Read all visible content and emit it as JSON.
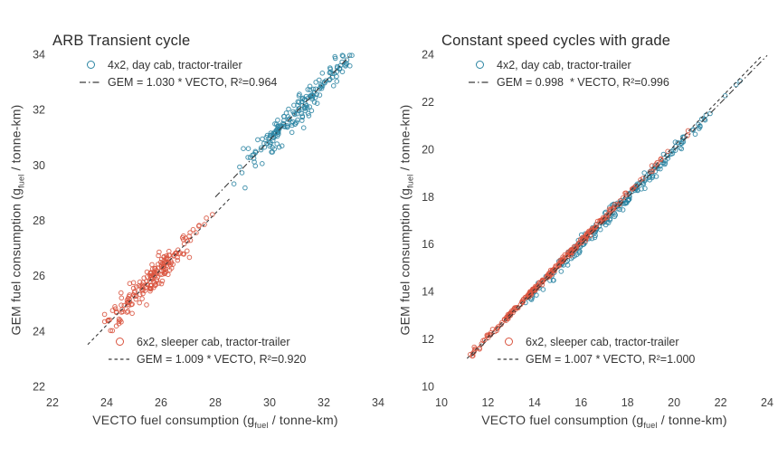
{
  "page": {
    "background": "#ffffff"
  },
  "chart_data": [
    {
      "type": "scatter",
      "title": "ARB Transient cycle",
      "xlabel": "VECTO fuel consumption (g_fuel / tonne-km)",
      "ylabel": "GEM fuel consumption (g_fuel / tonne-km)",
      "xlabel_parts": {
        "pre": "VECTO fuel consumption (g",
        "sub": "fuel",
        "post": " / tonne-km)"
      },
      "ylabel_parts": {
        "pre": "GEM fuel consumption (g",
        "sub": "fuel",
        "post": " / tonne-km)"
      },
      "xlim": [
        22,
        34
      ],
      "ylim": [
        22,
        34
      ],
      "xticks": [
        22,
        24,
        26,
        28,
        30,
        32,
        34
      ],
      "yticks": [
        22,
        24,
        26,
        28,
        30,
        32,
        34
      ],
      "grid": false,
      "legend_position": {
        "first_series": "upper-left-inside",
        "second_series": "lower-center-inside"
      },
      "series": [
        {
          "name": "4x2, day cab, tractor-trailer",
          "color": "#2a84a2",
          "marker": "open-circle",
          "fit_label": "GEM = 1.030 * VECTO, R²=0.964",
          "fit": {
            "slope": 1.03,
            "intercept": 0,
            "r2": 0.964,
            "dash": "dash-dot",
            "x_range": [
              28.0,
              33.0
            ]
          },
          "points_spec": {
            "count": 190,
            "x_min": 28.4,
            "x_max": 33.2,
            "x_mode": 30.9,
            "slope": 1.03,
            "noise_sd": 0.27,
            "seed": 7
          }
        },
        {
          "name": "6x2, sleeper cab, tractor-trailer",
          "color": "#d9533e",
          "marker": "open-circle",
          "fit_label": "GEM = 1.009 * VECTO, R²=0.920",
          "fit": {
            "slope": 1.009,
            "intercept": 0,
            "r2": 0.92,
            "dash": "dashed",
            "x_range": [
              23.3,
              28.55
            ]
          },
          "points_spec": {
            "count": 190,
            "x_min": 23.9,
            "x_max": 28.0,
            "x_mode": 25.7,
            "slope": 1.009,
            "noise_sd": 0.27,
            "seed": 13
          }
        }
      ]
    },
    {
      "type": "scatter",
      "title": "Constant speed cycles with grade",
      "xlabel": "VECTO fuel consumption (g_fuel / tonne-km)",
      "ylabel": "GEM fuel consumption (g_fuel / tonne-km)",
      "xlabel_parts": {
        "pre": "VECTO fuel consumption (g",
        "sub": "fuel",
        "post": " / tonne-km)"
      },
      "ylabel_parts": {
        "pre": "GEM fuel consumption (g",
        "sub": "fuel",
        "post": " / tonne-km)"
      },
      "xlim": [
        10,
        24
      ],
      "ylim": [
        10,
        24
      ],
      "xticks": [
        10,
        12,
        14,
        16,
        18,
        20,
        22,
        24
      ],
      "yticks": [
        10,
        12,
        14,
        16,
        18,
        20,
        22,
        24
      ],
      "grid": false,
      "legend_position": {
        "first_series": "upper-left-inside",
        "second_series": "lower-center-inside"
      },
      "series": [
        {
          "name": "4x2, day cab, tractor-trailer",
          "color": "#2a84a2",
          "marker": "open-circle",
          "fit_label": "GEM = 0.998  * VECTO, R²=0.996",
          "fit": {
            "slope": 0.998,
            "intercept": 0,
            "r2": 0.996,
            "dash": "dash-dot",
            "x_range": [
              11.3,
              24.0
            ]
          },
          "points_spec": {
            "count": 210,
            "x_min": 13.4,
            "x_max": 24.0,
            "x_mode": 17.3,
            "slope": 0.998,
            "noise_sd": 0.17,
            "seed": 21
          }
        },
        {
          "name": "6x2, sleeper cab, tractor-trailer",
          "color": "#d9533e",
          "marker": "open-circle",
          "fit_label": "GEM = 1.007 * VECTO, R²=1.000",
          "fit": {
            "slope": 1.007,
            "intercept": 0,
            "r2": 1.0,
            "dash": "dashed",
            "x_range": [
              11.1,
              23.8
            ]
          },
          "points_spec": {
            "count": 270,
            "x_min": 11.2,
            "x_max": 21.2,
            "x_mode": 14.5,
            "slope": 1.007,
            "noise_sd": 0.06,
            "seed": 33
          }
        }
      ]
    }
  ]
}
